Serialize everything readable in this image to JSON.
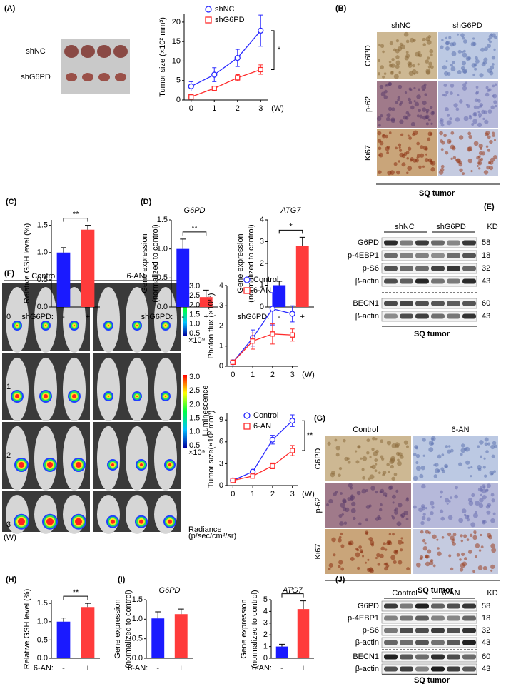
{
  "figure": {
    "A": {
      "label": "(A)",
      "rows": [
        "shNC",
        "shG6PD"
      ]
    },
    "B": {
      "label": "(B)",
      "columns": [
        "shNC",
        "shG6PD"
      ],
      "rows": [
        "G6PD",
        "p-62",
        "Ki67"
      ],
      "caption": "SQ tumor"
    },
    "C": {
      "label": "(C)"
    },
    "D": {
      "label": "(D)"
    },
    "E": {
      "label": "(E)",
      "columns": [
        "shNC",
        "shG6PD"
      ],
      "unit": "KD",
      "rows": [
        "G6PD",
        "p-4EBP1",
        "p-S6",
        "β-actin",
        "BECN1",
        "β-actin"
      ],
      "kd": [
        58,
        18,
        32,
        43,
        60,
        43
      ],
      "caption": "SQ tumor"
    },
    "F": {
      "label": "(F)",
      "columns": [
        "Control",
        "6-AN"
      ],
      "rows": [
        "0",
        "1",
        "2",
        "3"
      ],
      "row_unit": "(W)",
      "colorbar_ticks": [
        "3.0",
        "2.5",
        "2.0",
        "1.5",
        "1.0",
        "0.5"
      ],
      "colorbar_scale": "×10⁹",
      "colorbar_label": "Luminescence",
      "radiance_label": [
        "Radiance",
        "(p/sec/cm²/sr)"
      ]
    },
    "G": {
      "label": "(G)",
      "columns": [
        "Control",
        "6-AN"
      ],
      "rows": [
        "G6PD",
        "p-62",
        "Ki67"
      ],
      "caption": "SQ tumor"
    },
    "H": {
      "label": "(H)"
    },
    "I": {
      "label": "(I)"
    },
    "J": {
      "label": "(J)",
      "columns": [
        "Control",
        "6-AN"
      ],
      "unit": "KD",
      "rows": [
        "G6PD",
        "p-4EBP1",
        "p-S6",
        "β-actin",
        "BECN1",
        "β-actin"
      ],
      "kd": [
        58,
        18,
        32,
        43,
        60,
        43
      ],
      "caption": "SQ tumor"
    }
  },
  "chart_data": [
    {
      "type": "line",
      "ylabel": "Tumor size (×10² mm³)",
      "x": [
        0,
        1,
        2,
        3
      ],
      "xlim": [
        -0.3,
        3.3
      ],
      "xticks": [
        0,
        1,
        2,
        3
      ],
      "x_unit": "(W)",
      "ylim": [
        0,
        22
      ],
      "yticks": [
        0,
        5,
        10,
        15,
        20
      ],
      "annotation": "*",
      "series": [
        {
          "name": "shNC",
          "color": "#2b2bff",
          "marker": "circle",
          "values": [
            3.5,
            6.5,
            10.8,
            17.8
          ],
          "errors": [
            1.2,
            1.8,
            2.2,
            4.0
          ]
        },
        {
          "name": "shG6PD",
          "color": "#ff2b2b",
          "marker": "square",
          "values": [
            0.8,
            3.0,
            5.7,
            7.8
          ],
          "errors": [
            0.3,
            0.5,
            0.8,
            1.2
          ]
        }
      ]
    },
    {
      "type": "bar",
      "ylabel": "Relative GSH level (%)",
      "category_label": "shG6PD:",
      "categories": [
        "-",
        "+"
      ],
      "values": [
        1.0,
        1.42
      ],
      "errors": [
        0.09,
        0.08
      ],
      "colors": [
        "#1a1aff",
        "#ff3b3b"
      ],
      "ylim": [
        0,
        1.6
      ],
      "yticks": [
        {
          "value": 0,
          "label": "0.0"
        },
        0.5,
        {
          "value": 1,
          "label": "1.0"
        },
        1.5
      ],
      "annotation": "**"
    },
    {
      "type": "bar",
      "title": "G6PD",
      "ylabel": [
        "Gene expression",
        "(normalized to control)"
      ],
      "category_label": "shG6PD:",
      "categories": [
        "-",
        "+"
      ],
      "values": [
        1.0,
        0.17
      ],
      "errors": [
        0.17,
        0.12
      ],
      "colors": [
        "#1a1aff",
        "#ff3b3b"
      ],
      "ylim": [
        0,
        1.5
      ],
      "yticks": [
        {
          "value": 0,
          "label": "0.0"
        },
        0.5,
        {
          "value": 1,
          "label": "1.0"
        },
        1.5
      ],
      "annotation": "**"
    },
    {
      "type": "bar",
      "title": "ATG7",
      "ylabel": [
        "Gene expression",
        "(normalized to control)"
      ],
      "category_label": "shG6PD:",
      "categories": [
        "-",
        "+"
      ],
      "values": [
        1.0,
        2.8
      ],
      "errors": [
        0.18,
        0.4
      ],
      "colors": [
        "#1a1aff",
        "#ff3b3b"
      ],
      "ylim": [
        0,
        4
      ],
      "yticks": [
        0,
        1,
        2,
        3,
        4
      ],
      "annotation": "*"
    },
    {
      "type": "line",
      "ylabel": "Photon flux (×10¹⁰)",
      "x": [
        0,
        1,
        2,
        3
      ],
      "xlim": [
        -0.3,
        3.3
      ],
      "xticks": [
        0,
        1,
        2,
        3
      ],
      "x_unit": "(W)",
      "ylim": [
        0,
        4
      ],
      "yticks": [
        0,
        1,
        2,
        3,
        4
      ],
      "series": [
        {
          "name": "Control",
          "color": "#2b2bff",
          "marker": "circle",
          "values": [
            0.2,
            1.4,
            2.85,
            2.6
          ],
          "errors": [
            0.05,
            0.4,
            0.8,
            0.4
          ]
        },
        {
          "name": "6-AN",
          "color": "#ff2b2b",
          "marker": "square",
          "values": [
            0.2,
            1.25,
            1.6,
            1.55
          ],
          "errors": [
            0.05,
            0.4,
            0.5,
            0.3
          ]
        }
      ]
    },
    {
      "type": "line",
      "ylabel": "Tumor size(×10² mm³)",
      "x": [
        0,
        1,
        2,
        3
      ],
      "xlim": [
        -0.3,
        3.3
      ],
      "xticks": [
        0,
        1,
        2,
        3
      ],
      "x_unit": "(W)",
      "ylim": [
        0,
        10
      ],
      "yticks": [
        0,
        3,
        6,
        9
      ],
      "annotation": "**",
      "series": [
        {
          "name": "Control",
          "color": "#2b2bff",
          "marker": "circle",
          "values": [
            0.7,
            1.9,
            6.3,
            8.9
          ],
          "errors": [
            0.1,
            0.3,
            0.6,
            0.8
          ]
        },
        {
          "name": "6-AN",
          "color": "#ff2b2b",
          "marker": "square",
          "values": [
            0.7,
            1.3,
            2.7,
            4.8
          ],
          "errors": [
            0.1,
            0.2,
            0.4,
            0.7
          ]
        }
      ]
    },
    {
      "type": "bar",
      "ylabel": "Relative GSH level (%)",
      "category_label": "6-AN:",
      "categories": [
        "-",
        "+"
      ],
      "values": [
        1.0,
        1.4
      ],
      "errors": [
        0.1,
        0.1
      ],
      "colors": [
        "#1a1aff",
        "#ff3b3b"
      ],
      "ylim": [
        0,
        1.6
      ],
      "yticks": [
        {
          "value": 0,
          "label": "0.0"
        },
        0.5,
        {
          "value": 1,
          "label": "1.0"
        },
        1.5
      ],
      "annotation": "**"
    },
    {
      "type": "bar",
      "title": "G6PD",
      "ylabel": [
        "Gene expression",
        "(normalized to control)"
      ],
      "category_label": "6-AN:",
      "categories": [
        "-",
        "+"
      ],
      "values": [
        1.02,
        1.13
      ],
      "errors": [
        0.17,
        0.13
      ],
      "colors": [
        "#1a1aff",
        "#ff3b3b"
      ],
      "ylim": [
        0,
        1.5
      ],
      "yticks": [
        {
          "value": 0,
          "label": "0.0"
        },
        0.5,
        {
          "value": 1,
          "label": "1.0"
        },
        1.5
      ]
    },
    {
      "type": "bar",
      "title": "ATG7",
      "ylabel": [
        "Gene expression",
        "(normalized to control)"
      ],
      "category_label": "6-AN:",
      "categories": [
        "-",
        "+"
      ],
      "values": [
        1.0,
        4.2
      ],
      "errors": [
        0.2,
        0.7
      ],
      "colors": [
        "#1a1aff",
        "#ff3b3b"
      ],
      "ylim": [
        0,
        5
      ],
      "yticks": [
        0,
        1,
        2,
        3,
        4,
        5
      ],
      "annotation": "*"
    }
  ]
}
